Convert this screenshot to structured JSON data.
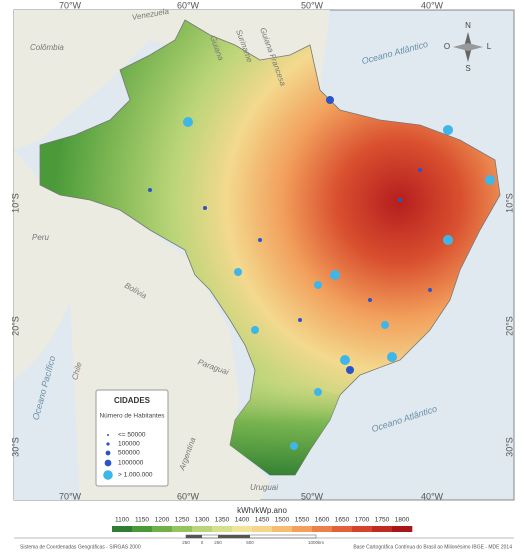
{
  "graticule": {
    "top": [
      "70°W",
      "60°W",
      "50°W",
      "40°W"
    ],
    "bottom": [
      "70°W",
      "60°W",
      "50°W",
      "40°W"
    ],
    "left": [
      "10°S",
      "20°S",
      "30°S"
    ],
    "right": [
      "10°S",
      "20°S",
      "30°S"
    ]
  },
  "places": {
    "venezuela": "Venezuela",
    "colombia": "Colômbia",
    "guiana": "Guiana",
    "suriname": "Suriname",
    "guiana_francesa": "Guiana Francesa",
    "atlantico_norte": "Oceano Atlântico",
    "peru": "Peru",
    "bolivia": "Bolívia",
    "paraguai": "Paraguai",
    "chile": "Chile",
    "argentina": "Argentina",
    "uruguai": "Uruguai",
    "pacifico": "Oceano Pacífico",
    "atlantico_sul": "Oceano Atlântico"
  },
  "compass": {
    "n": "N",
    "s": "S",
    "l": "L",
    "o": "O"
  },
  "legend": {
    "title": "CIDADES",
    "subtitle": "Número de Habitantes",
    "items": [
      "<= 50000",
      "100000",
      "500000",
      "1000000",
      "> 1.000.000"
    ]
  },
  "colorbar": {
    "title": "kWh/kWp.ano",
    "ticks": [
      "1100",
      "1150",
      "1200",
      "1250",
      "1300",
      "1350",
      "1400",
      "1450",
      "1500",
      "1550",
      "1600",
      "1650",
      "1700",
      "1750",
      "1800"
    ],
    "colors": [
      "#2e7d32",
      "#4a9a3a",
      "#6fb04a",
      "#95c45e",
      "#b9d577",
      "#d6e08c",
      "#efe49a",
      "#f6d48a",
      "#f5bd72",
      "#f2a05c",
      "#ec8049",
      "#e2603a",
      "#d4432c",
      "#c22b22",
      "#a8161a"
    ]
  },
  "footer": {
    "left": "Sistema de Coordenadas Geográficas - SIRGAS 2000",
    "scale": [
      "250",
      "0",
      "250",
      "500",
      "1000km"
    ],
    "right": "Base Cartográfica Contínua do Brasil ao Milionésimo IBGE - MDE 2014"
  }
}
